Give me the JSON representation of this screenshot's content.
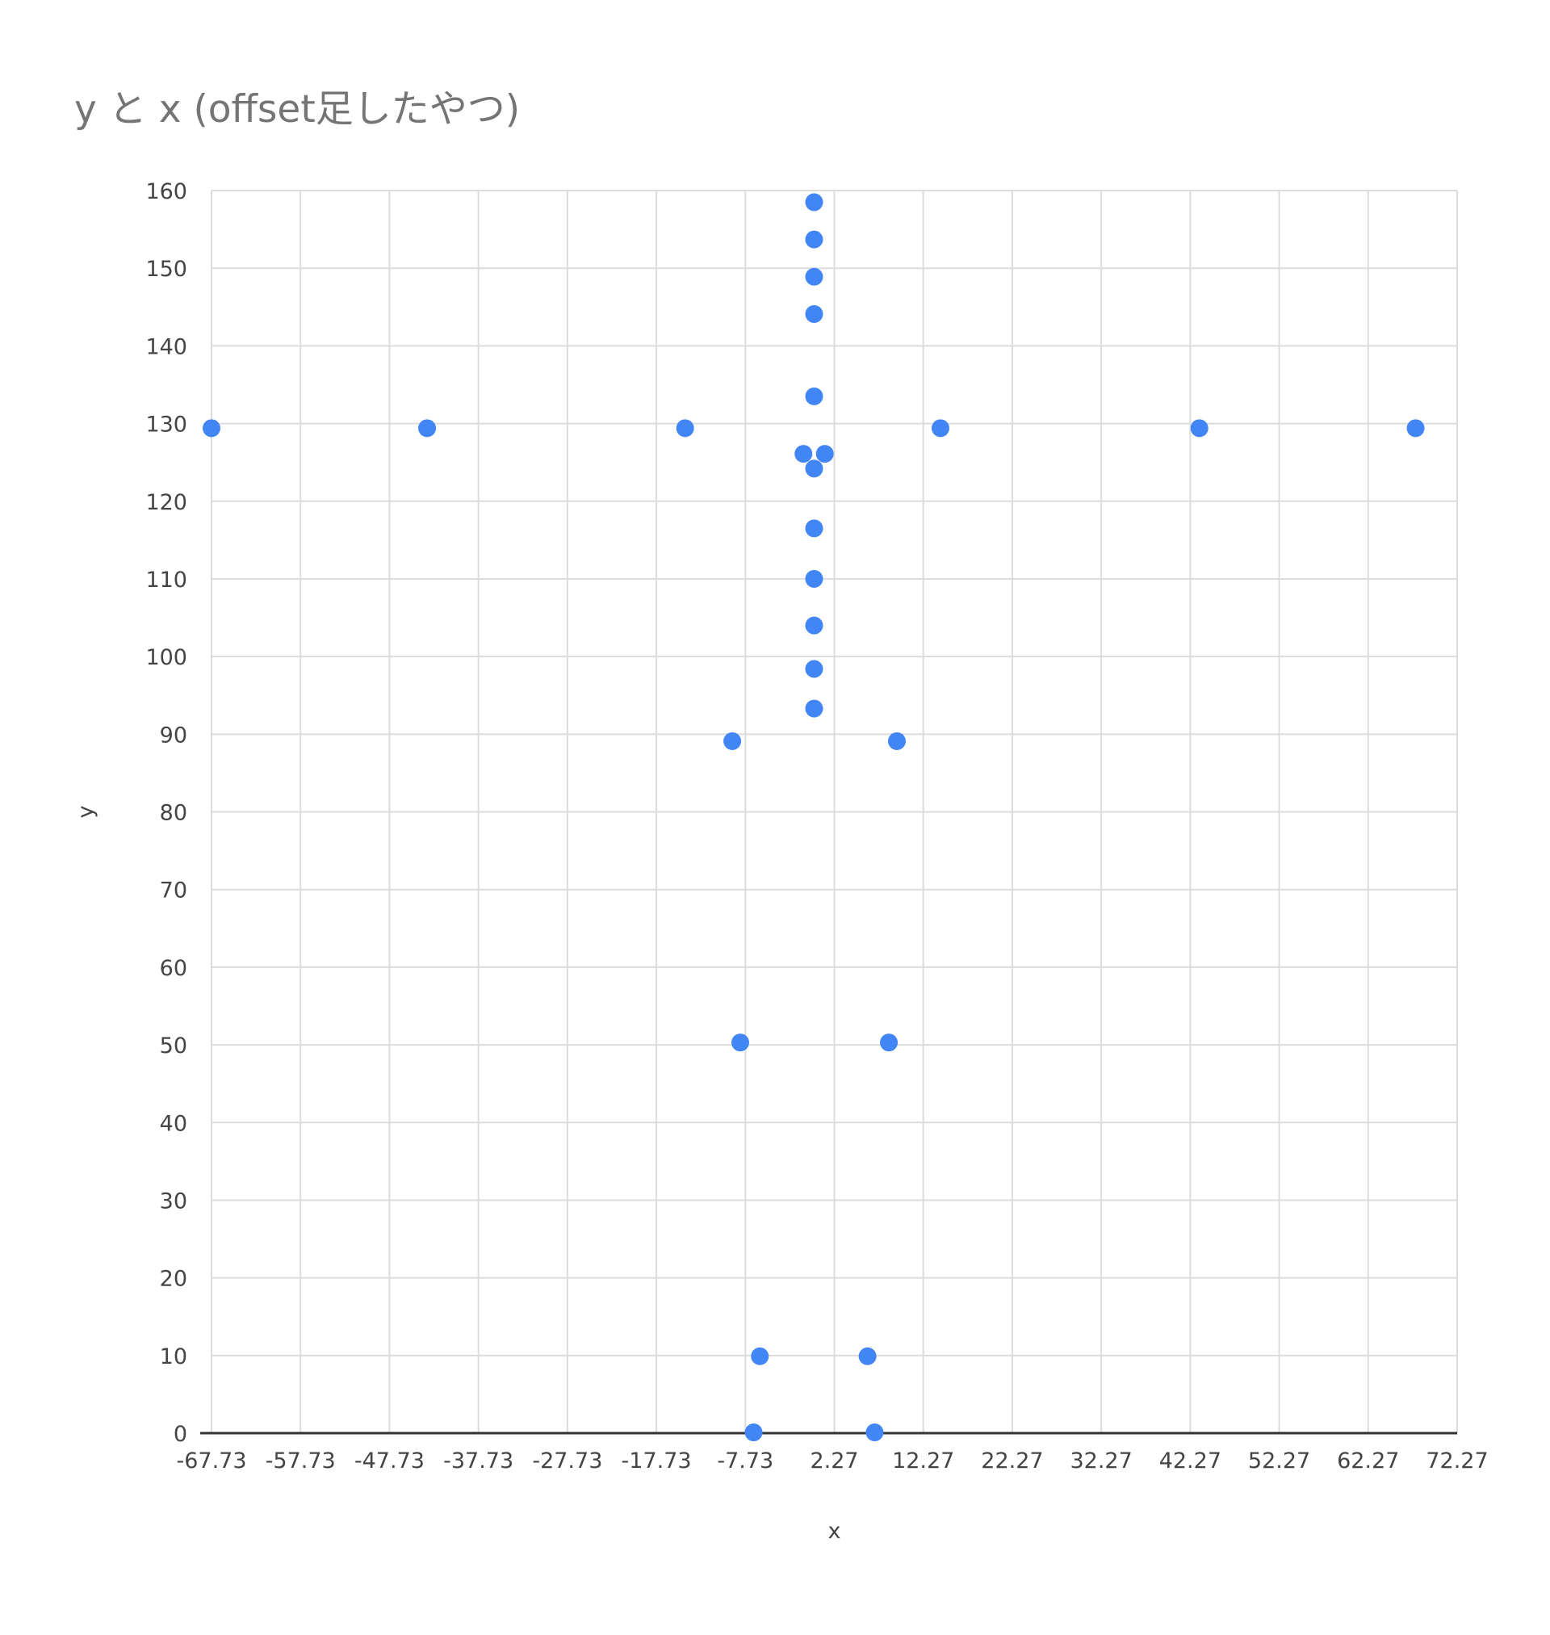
{
  "chart_data": {
    "type": "scatter",
    "title": "y と x (offset足したやつ)",
    "xlabel": "x",
    "ylabel": "y",
    "xlim": [
      -67.73,
      72.27
    ],
    "ylim": [
      0,
      160
    ],
    "grid": true,
    "legend": "none",
    "x_ticks": [
      "-67.73",
      "-57.73",
      "-47.73",
      "-37.73",
      "-27.73",
      "-17.73",
      "-7.73",
      "2.27",
      "12.27",
      "22.27",
      "32.27",
      "42.27",
      "52.27",
      "62.27",
      "72.27"
    ],
    "y_ticks": [
      "0",
      "10",
      "20",
      "30",
      "40",
      "50",
      "60",
      "70",
      "80",
      "90",
      "100",
      "110",
      "120",
      "130",
      "140",
      "150",
      "160"
    ],
    "colors": {
      "point": "#4285f4",
      "grid": "#dcdcdc",
      "axis": "#333333"
    },
    "series": [
      {
        "x": [
          0,
          0,
          0,
          0,
          0,
          -67.73,
          -43.5,
          -14.5,
          14.2,
          43.3,
          67.6,
          -1.2,
          1.2,
          0,
          0,
          0,
          0,
          0,
          0,
          -9.2,
          9.3,
          -8.3,
          8.4,
          -6.1,
          6.0,
          -6.8,
          6.8
        ],
        "y": [
          158.5,
          153.7,
          148.9,
          144.1,
          133.5,
          129.4,
          129.4,
          129.4,
          129.4,
          129.4,
          129.4,
          126.1,
          126.1,
          124.2,
          116.5,
          110.0,
          104.0,
          98.4,
          93.3,
          89.1,
          89.1,
          50.3,
          50.3,
          9.9,
          9.9,
          0.1,
          0.1
        ]
      }
    ]
  }
}
